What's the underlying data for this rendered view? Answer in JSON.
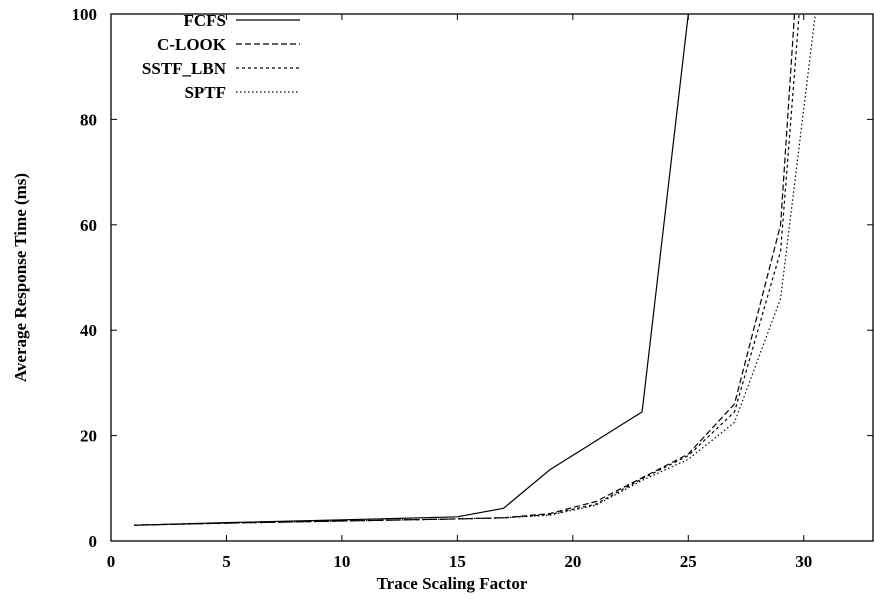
{
  "chart_data": {
    "type": "line",
    "title": "",
    "xlabel": "Trace Scaling Factor",
    "ylabel": "Average Response Time (ms)",
    "xlim": [
      0,
      33
    ],
    "ylim": [
      0,
      100
    ],
    "xticks": [
      0,
      5,
      10,
      15,
      20,
      25,
      30
    ],
    "yticks": [
      0,
      20,
      40,
      60,
      80,
      100
    ],
    "grid": false,
    "legend_position": "top-left",
    "series": [
      {
        "name": "FCFS",
        "style": "solid",
        "x": [
          1,
          5,
          10,
          15,
          17,
          19,
          21,
          23,
          25
        ],
        "y": [
          3,
          3.5,
          4,
          4.6,
          6.2,
          13.5,
          19,
          24.5,
          100
        ]
      },
      {
        "name": "C-LOOK",
        "style": "dashed",
        "x": [
          1,
          5,
          10,
          15,
          17,
          19,
          21,
          23,
          25,
          27,
          29,
          29.6
        ],
        "y": [
          3,
          3.4,
          3.8,
          4.2,
          4.4,
          5.2,
          7.5,
          12,
          16.5,
          26,
          60,
          100
        ]
      },
      {
        "name": "SSTF_LBN",
        "style": "short-dashed",
        "x": [
          1,
          5,
          10,
          15,
          17,
          19,
          21,
          23,
          25,
          27,
          29,
          29.8
        ],
        "y": [
          3,
          3.4,
          3.8,
          4.2,
          4.4,
          5.0,
          7.0,
          11.8,
          16.2,
          24.5,
          55,
          100
        ]
      },
      {
        "name": "SPTF",
        "style": "dotted",
        "x": [
          1,
          5,
          10,
          15,
          17,
          19,
          21,
          23,
          25,
          27,
          29,
          30.5
        ],
        "y": [
          3,
          3.4,
          3.8,
          4.2,
          4.4,
          4.9,
          6.8,
          11.5,
          15.5,
          22.5,
          46,
          100
        ]
      }
    ]
  }
}
